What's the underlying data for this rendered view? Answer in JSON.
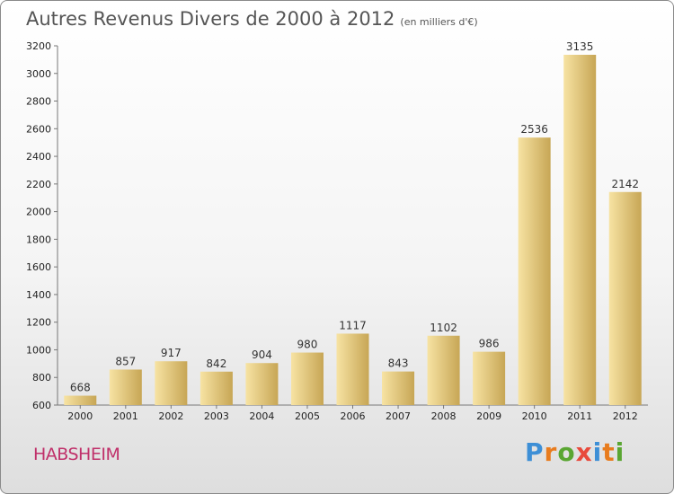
{
  "title": "Autres Revenus Divers de 2000 à 2012",
  "unit": "(en milliers d'€)",
  "city": "HABSHEIM",
  "logo": {
    "letters": [
      "P",
      "r",
      "o",
      "x",
      "i",
      "t",
      "i"
    ],
    "colors": [
      "#3d8fd6",
      "#e87c1e",
      "#5aa632",
      "#e84a3c",
      "#3d8fd6",
      "#e87c1e",
      "#5aa632"
    ]
  },
  "colors": {
    "bar_light": "#f7e3a3",
    "bar_dark": "#c7a655",
    "city": "#c0306a"
  },
  "chart_data": {
    "type": "bar",
    "categories": [
      "2000",
      "2001",
      "2002",
      "2003",
      "2004",
      "2005",
      "2006",
      "2007",
      "2008",
      "2009",
      "2010",
      "2011",
      "2012"
    ],
    "values": [
      668,
      857,
      917,
      842,
      904,
      980,
      1117,
      843,
      1102,
      986,
      2536,
      3135,
      2142
    ],
    "ylim": [
      600,
      3200
    ],
    "yticks": [
      600,
      800,
      1000,
      1200,
      1400,
      1600,
      1800,
      2000,
      2200,
      2400,
      2600,
      2800,
      3000,
      3200
    ],
    "grid": false,
    "legend": "none"
  }
}
